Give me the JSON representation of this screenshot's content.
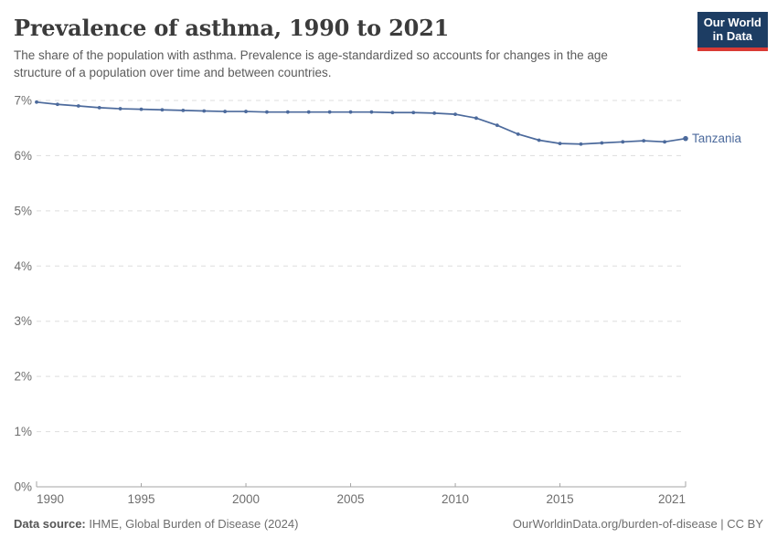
{
  "header": {
    "title": "Prevalence of asthma, 1990 to 2021",
    "subtitle": "The share of the population with asthma. Prevalence is age-standardized so accounts for changes in the age structure of a population over time and between countries."
  },
  "logo": {
    "line1": "Our World",
    "line2": "in Data",
    "bg_color": "#1d3d63",
    "stripe_color": "#d93a35"
  },
  "footer": {
    "source_label": "Data source:",
    "source_text": " IHME, Global Burden of Disease (2024)",
    "right_text": "OurWorldinData.org/burden-of-disease | CC BY"
  },
  "chart_data": {
    "type": "line",
    "title": "Prevalence of asthma, 1990 to 2021",
    "xlabel": "",
    "ylabel": "",
    "x": [
      1990,
      1991,
      1992,
      1993,
      1994,
      1995,
      1996,
      1997,
      1998,
      1999,
      2000,
      2001,
      2002,
      2003,
      2004,
      2005,
      2006,
      2007,
      2008,
      2009,
      2010,
      2011,
      2012,
      2013,
      2014,
      2015,
      2016,
      2017,
      2018,
      2019,
      2020,
      2021
    ],
    "series": [
      {
        "name": "Tanzania",
        "color": "#4C6A9C",
        "values": [
          6.97,
          6.93,
          6.9,
          6.87,
          6.85,
          6.84,
          6.83,
          6.82,
          6.81,
          6.8,
          6.8,
          6.79,
          6.79,
          6.79,
          6.79,
          6.79,
          6.79,
          6.78,
          6.78,
          6.77,
          6.75,
          6.68,
          6.55,
          6.39,
          6.28,
          6.22,
          6.21,
          6.23,
          6.25,
          6.27,
          6.25,
          6.31
        ]
      }
    ],
    "xlim": [
      1990,
      2021
    ],
    "ylim": [
      0,
      7
    ],
    "xticks": [
      1990,
      1995,
      2000,
      2005,
      2010,
      2015,
      2021
    ],
    "yticks": [
      0,
      1,
      2,
      3,
      4,
      5,
      6,
      7
    ],
    "ytick_suffix": "%",
    "grid": "horizontal-dashed",
    "legend_position": "end-of-line",
    "colors": {
      "grid": "#dddddd",
      "axis": "#a5a5a5",
      "tick_text": "#6e6e6e"
    }
  }
}
